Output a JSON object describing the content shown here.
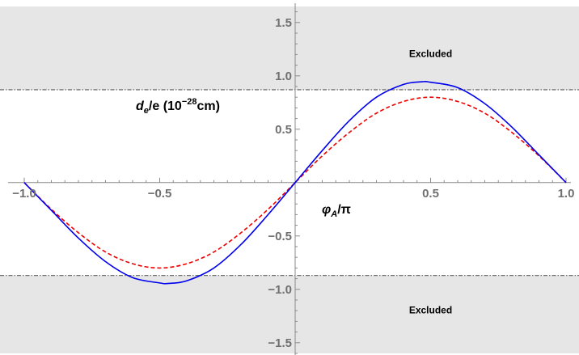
{
  "chart_data": {
    "type": "line",
    "title": "",
    "xlabel": {
      "main": "φ",
      "sub": "A",
      "tail": "/π"
    },
    "ylabel": {
      "main": "d",
      "sub": "e",
      "tail": "/e (10",
      "sup": "−28",
      "end": "cm)"
    },
    "xlim": [
      -1.0,
      1.0
    ],
    "ylim": [
      -1.6,
      1.65
    ],
    "x_ticks": [
      {
        "value": -1.0,
        "label": "−1.0"
      },
      {
        "value": -0.5,
        "label": "−0.5"
      },
      {
        "value": 0.5,
        "label": "0.5"
      },
      {
        "value": 1.0,
        "label": "1.0"
      }
    ],
    "y_ticks": [
      {
        "value": 1.5,
        "label": "1.5"
      },
      {
        "value": 1.0,
        "label": "1.0"
      },
      {
        "value": 0.5,
        "label": "0.5"
      },
      {
        "value": -0.5,
        "label": "−0.5"
      },
      {
        "value": -1.0,
        "label": "−1.0"
      },
      {
        "value": -1.5,
        "label": "−1.5"
      }
    ],
    "excluded_threshold": 0.87,
    "regions": [
      {
        "label": "Excluded",
        "from": 0.87,
        "to": 1.65,
        "label_x": 0.5,
        "label_y": 1.2
      },
      {
        "label": "Excluded",
        "from": -1.6,
        "to": -0.87,
        "label_x": 0.5,
        "label_y": -1.2
      }
    ],
    "series": [
      {
        "color": "#0000ee",
        "style": "solid",
        "x": [
          -1.0,
          -0.9,
          -0.8,
          -0.7,
          -0.6,
          -0.5,
          -0.47,
          -0.4,
          -0.3,
          -0.2,
          -0.1,
          0.0,
          0.1,
          0.2,
          0.3,
          0.4,
          0.47,
          0.5,
          0.6,
          0.7,
          0.8,
          0.9,
          1.0
        ],
        "y": [
          0.0,
          -0.26,
          -0.52,
          -0.74,
          -0.89,
          -0.94,
          -0.945,
          -0.92,
          -0.8,
          -0.58,
          -0.3,
          0.0,
          0.3,
          0.58,
          0.8,
          0.92,
          0.945,
          0.94,
          0.89,
          0.74,
          0.52,
          0.26,
          0.0
        ]
      },
      {
        "color": "#ee0000",
        "style": "dashed",
        "x": [
          -1.0,
          -0.9,
          -0.8,
          -0.7,
          -0.6,
          -0.5,
          -0.4,
          -0.3,
          -0.2,
          -0.1,
          0.0,
          0.1,
          0.2,
          0.3,
          0.4,
          0.5,
          0.6,
          0.7,
          0.8,
          0.9,
          1.0
        ],
        "y": [
          0.0,
          -0.25,
          -0.47,
          -0.65,
          -0.76,
          -0.8,
          -0.76,
          -0.65,
          -0.47,
          -0.25,
          0.0,
          0.25,
          0.47,
          0.65,
          0.76,
          0.8,
          0.76,
          0.65,
          0.47,
          0.25,
          0.0
        ]
      }
    ]
  }
}
